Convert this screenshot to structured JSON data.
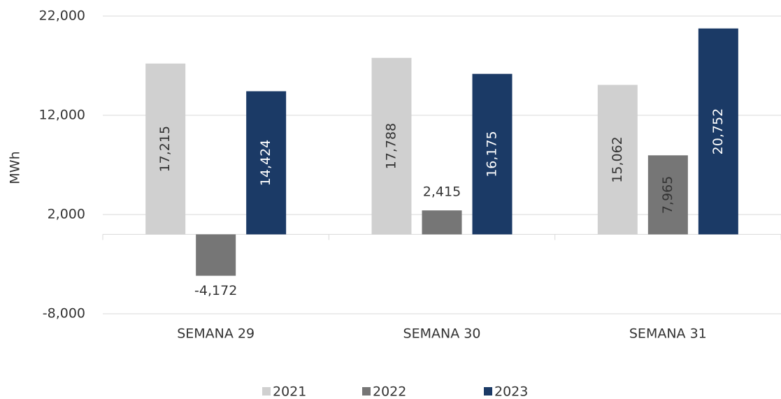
{
  "chart_data": {
    "type": "bar",
    "y_label": "MWh",
    "categories": [
      "SEMANA 29",
      "SEMANA 30",
      "SEMANA 31"
    ],
    "series": [
      {
        "name": "2021",
        "color": "#d0d0d0",
        "values": [
          17215,
          17788,
          15062
        ]
      },
      {
        "name": "2022",
        "color": "#767676",
        "values": [
          -4172,
          2415,
          7965
        ]
      },
      {
        "name": "2023",
        "color": "#1b3a66",
        "values": [
          14424,
          16175,
          20752
        ]
      }
    ],
    "value_labels": [
      [
        "17,215",
        "17,788",
        "15,062"
      ],
      [
        "-4,172",
        "2,415",
        "7,965"
      ],
      [
        "14,424",
        "16,175",
        "20,752"
      ]
    ],
    "ylim": [
      -8000,
      22000
    ],
    "yticks": [
      {
        "value": -8000,
        "label": "-8,000"
      },
      {
        "value": 2000,
        "label": "2,000"
      },
      {
        "value": 12000,
        "label": "12,000"
      },
      {
        "value": 22000,
        "label": "22,000"
      }
    ],
    "grid": true,
    "legend": "bottom"
  }
}
